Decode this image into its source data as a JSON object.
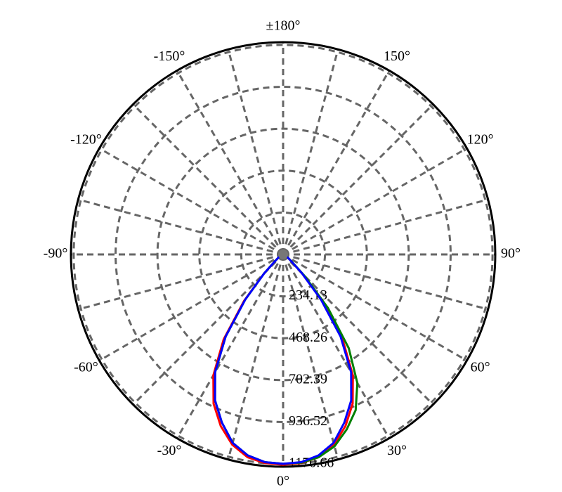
{
  "chart_data": {
    "type": "polar",
    "theta": [
      -90,
      -85,
      -80,
      -75,
      -70,
      -65,
      -60,
      -55,
      -50,
      -45,
      -40,
      -35,
      -30,
      -25,
      -20,
      -15,
      -10,
      -5,
      0,
      5,
      10,
      15,
      20,
      25,
      30,
      35,
      40,
      45,
      50,
      55,
      60,
      65,
      70,
      75,
      80,
      85,
      90
    ],
    "series": [
      {
        "color": "#ff0000",
        "values": [
          0,
          0,
          0,
          5,
          10,
          15,
          20,
          35,
          60,
          150,
          340,
          580,
          780,
          920,
          1020,
          1100,
          1150,
          1170,
          1175,
          1170,
          1150,
          1100,
          1020,
          920,
          780,
          580,
          340,
          150,
          60,
          35,
          20,
          15,
          10,
          5,
          0,
          0,
          0
        ]
      },
      {
        "color": "#008000",
        "values": [
          0,
          0,
          0,
          5,
          10,
          15,
          20,
          35,
          60,
          150,
          330,
          560,
          760,
          900,
          1000,
          1090,
          1140,
          1165,
          1170,
          1168,
          1150,
          1110,
          1040,
          960,
          830,
          640,
          390,
          170,
          65,
          35,
          20,
          15,
          10,
          5,
          0,
          0,
          0
        ]
      },
      {
        "color": "#0000ff",
        "values": [
          0,
          0,
          0,
          5,
          10,
          15,
          20,
          35,
          60,
          150,
          330,
          560,
          760,
          900,
          1000,
          1090,
          1140,
          1165,
          1170,
          1165,
          1140,
          1090,
          1000,
          900,
          760,
          560,
          330,
          150,
          60,
          35,
          20,
          15,
          10,
          5,
          0,
          0,
          0
        ]
      }
    ],
    "rlim": [
      0,
      1186
    ],
    "rticks": [
      234.13,
      468.26,
      702.39,
      936.52,
      1170.66
    ],
    "thetaticks": [
      {
        "value": 0,
        "label": "0°"
      },
      {
        "value": 30,
        "label": "30°"
      },
      {
        "value": 60,
        "label": "60°"
      },
      {
        "value": 90,
        "label": "90°"
      },
      {
        "value": 120,
        "label": "120°"
      },
      {
        "value": 150,
        "label": "150°"
      },
      {
        "value": 180,
        "label": "±180°"
      },
      {
        "value": -150,
        "label": "-150°"
      },
      {
        "value": -120,
        "label": "-120°"
      },
      {
        "value": -90,
        "label": "-90°"
      },
      {
        "value": -60,
        "label": "-60°"
      },
      {
        "value": -30,
        "label": "-30°"
      }
    ],
    "grid": true
  }
}
